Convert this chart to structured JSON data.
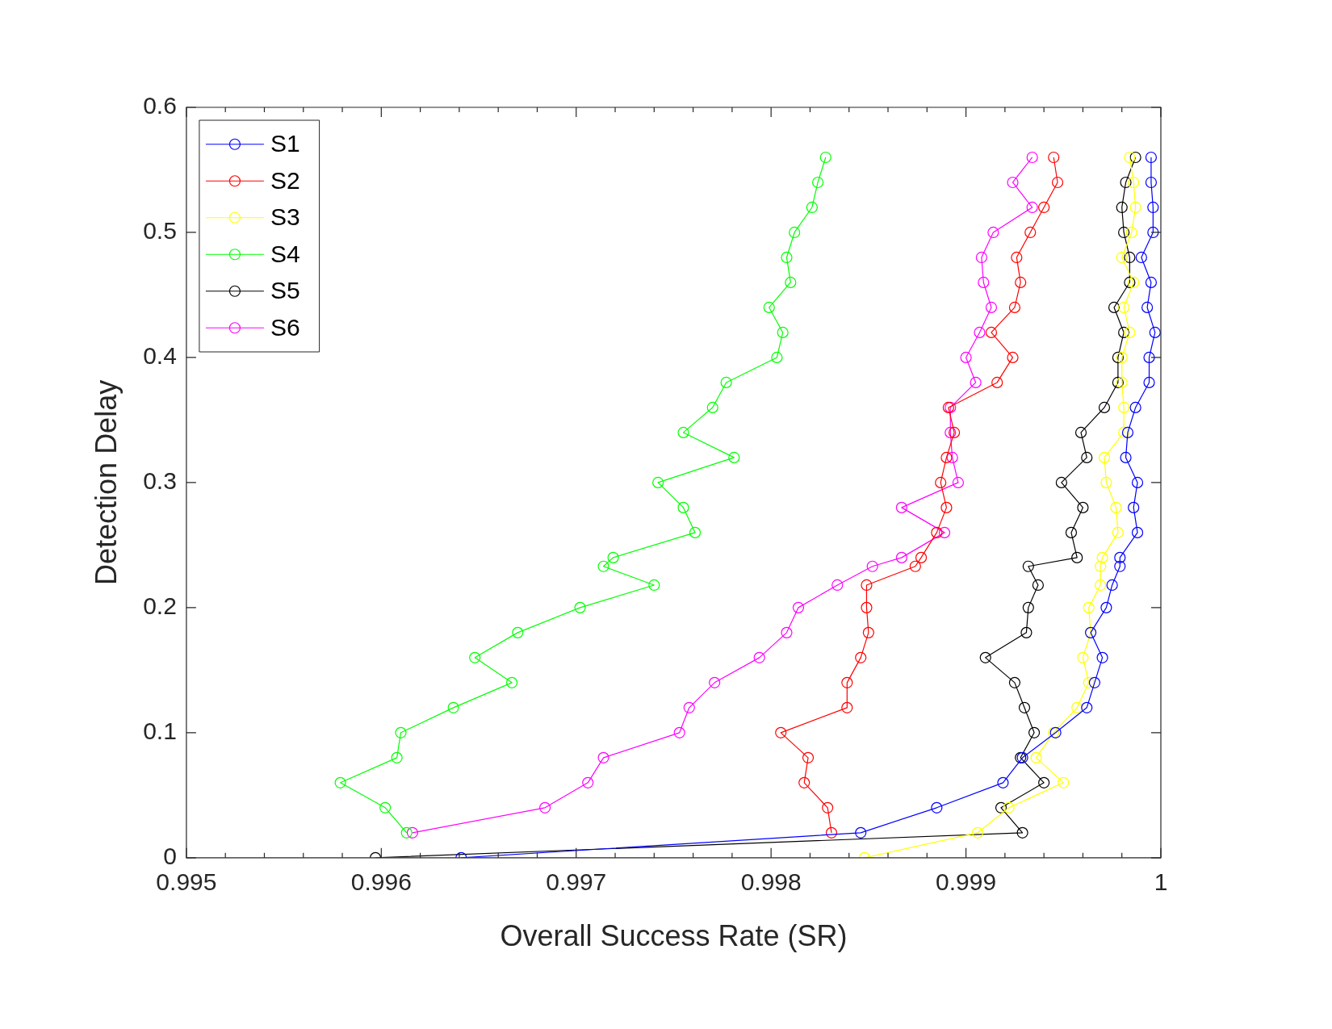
{
  "chart_data": {
    "type": "line",
    "xlabel": "Overall Success Rate (SR)",
    "ylabel": "Detection Delay",
    "xlim": [
      0.995,
      1
    ],
    "ylim": [
      0,
      0.6
    ],
    "xticks": [
      0.995,
      {
        "value": 0.9952,
        "label": null
      },
      {
        "value": 0.9954,
        "label": null
      },
      {
        "value": 0.9956,
        "label": null
      },
      {
        "value": 0.9958,
        "label": null
      },
      0.996,
      {
        "value": 0.9962,
        "label": null
      },
      {
        "value": 0.9964,
        "label": null
      },
      {
        "value": 0.9966,
        "label": null
      },
      {
        "value": 0.9968,
        "label": null
      },
      0.997,
      {
        "value": 0.9972,
        "label": null
      },
      {
        "value": 0.9974,
        "label": null
      },
      {
        "value": 0.9976,
        "label": null
      },
      {
        "value": 0.9978,
        "label": null
      },
      0.998,
      {
        "value": 0.9982,
        "label": null
      },
      {
        "value": 0.9984,
        "label": null
      },
      {
        "value": 0.9986,
        "label": null
      },
      {
        "value": 0.9988,
        "label": null
      },
      0.999,
      {
        "value": 0.9992,
        "label": null
      },
      {
        "value": 0.9994,
        "label": null
      },
      {
        "value": 0.9996,
        "label": null
      },
      {
        "value": 0.9998,
        "label": null
      },
      1
    ],
    "yticks": [
      0,
      0.1,
      0.2,
      0.3,
      0.4,
      0.5,
      0.6
    ],
    "grid": false,
    "legend": "top left",
    "marker": "circle",
    "line_style": "solid",
    "series": [
      {
        "name": "S1",
        "color": "#0000ff",
        "x": [
          0.99641,
          0.99846,
          0.99885,
          0.99919,
          0.99929,
          0.99946,
          0.99962,
          0.99966,
          0.9997,
          0.99964,
          0.99972,
          0.99975,
          0.99979,
          0.99979,
          0.99988,
          0.99986,
          0.99988,
          0.99982,
          0.99983,
          0.99987,
          0.99994,
          0.99994,
          0.99997,
          0.99993,
          0.99995,
          0.9999,
          0.99996,
          0.99996,
          0.99995,
          0.99995
        ],
        "values": [
          0,
          0.02,
          0.04,
          0.06,
          0.08,
          0.1,
          0.12,
          0.14,
          0.16,
          0.18,
          0.2,
          0.218,
          0.233,
          0.24,
          0.26,
          0.28,
          0.3,
          0.32,
          0.34,
          0.36,
          0.38,
          0.4,
          0.42,
          0.44,
          0.46,
          0.48,
          0.5,
          0.52,
          0.54,
          0.56
        ]
      },
      {
        "name": "S2",
        "color": "#ff0000",
        "x": [
          0.99831,
          0.99829,
          0.99817,
          0.99819,
          0.99805,
          0.99839,
          0.99839,
          0.99846,
          0.9985,
          0.99849,
          0.99849,
          0.99874,
          0.99877,
          0.99885,
          0.9989,
          0.99887,
          0.9989,
          0.99894,
          0.99891,
          0.99916,
          0.99924,
          0.99913,
          0.99925,
          0.99928,
          0.99926,
          0.99933,
          0.9994,
          0.99947,
          0.99945
        ],
        "values": [
          0.02,
          0.04,
          0.06,
          0.08,
          0.1,
          0.12,
          0.14,
          0.16,
          0.18,
          0.2,
          0.218,
          0.233,
          0.24,
          0.26,
          0.28,
          0.3,
          0.32,
          0.34,
          0.36,
          0.38,
          0.4,
          0.42,
          0.44,
          0.46,
          0.48,
          0.5,
          0.52,
          0.54,
          0.56
        ]
      },
      {
        "name": "S3",
        "color": "#ffff00",
        "x": [
          0.99848,
          0.99906,
          0.99922,
          0.9995,
          0.99936,
          0.99945,
          0.99957,
          0.99963,
          0.9996,
          0.99964,
          0.99963,
          0.99969,
          0.99969,
          0.9997,
          0.99978,
          0.99977,
          0.99972,
          0.99971,
          0.99981,
          0.99981,
          0.9998,
          0.9998,
          0.99984,
          0.99981,
          0.99986,
          0.9998,
          0.99985,
          0.99987,
          0.99986,
          0.99984
        ],
        "values": [
          0,
          0.02,
          0.04,
          0.06,
          0.08,
          0.1,
          0.12,
          0.14,
          0.16,
          0.18,
          0.2,
          0.218,
          0.233,
          0.24,
          0.26,
          0.28,
          0.3,
          0.32,
          0.34,
          0.36,
          0.38,
          0.4,
          0.42,
          0.44,
          0.46,
          0.48,
          0.5,
          0.52,
          0.54,
          0.56
        ]
      },
      {
        "name": "S4",
        "color": "#00ff00",
        "x": [
          0.99613,
          0.99602,
          0.99579,
          0.99608,
          0.9961,
          0.99637,
          0.99667,
          0.99648,
          0.9967,
          0.99702,
          0.9974,
          0.99714,
          0.99719,
          0.99761,
          0.99755,
          0.99742,
          0.99781,
          0.99755,
          0.9977,
          0.99777,
          0.99803,
          0.99806,
          0.99799,
          0.9981,
          0.99808,
          0.99812,
          0.99821,
          0.99824,
          0.99828
        ],
        "values": [
          0.02,
          0.04,
          0.06,
          0.08,
          0.1,
          0.12,
          0.14,
          0.16,
          0.18,
          0.2,
          0.218,
          0.233,
          0.24,
          0.26,
          0.28,
          0.3,
          0.32,
          0.34,
          0.36,
          0.38,
          0.4,
          0.42,
          0.44,
          0.46,
          0.48,
          0.5,
          0.52,
          0.54,
          0.56
        ]
      },
      {
        "name": "S5",
        "color": "#000000",
        "x": [
          0.99597,
          0.99929,
          0.99918,
          0.9994,
          0.99928,
          0.99935,
          0.9993,
          0.99925,
          0.9991,
          0.99931,
          0.99932,
          0.99937,
          0.99932,
          0.99957,
          0.99954,
          0.9996,
          0.99949,
          0.99962,
          0.99959,
          0.99971,
          0.99978,
          0.99978,
          0.99981,
          0.99976,
          0.99984,
          0.99984,
          0.99981,
          0.9998,
          0.99982,
          0.99987
        ],
        "values": [
          0,
          0.02,
          0.04,
          0.06,
          0.08,
          0.1,
          0.12,
          0.14,
          0.16,
          0.18,
          0.2,
          0.218,
          0.233,
          0.24,
          0.26,
          0.28,
          0.3,
          0.32,
          0.34,
          0.36,
          0.38,
          0.4,
          0.42,
          0.44,
          0.46,
          0.48,
          0.5,
          0.52,
          0.54,
          0.56
        ]
      },
      {
        "name": "S6",
        "color": "#ff00ff",
        "x": [
          0.99616,
          0.99684,
          0.99706,
          0.99714,
          0.99753,
          0.99758,
          0.99771,
          0.99794,
          0.99808,
          0.99814,
          0.99834,
          0.99852,
          0.99867,
          0.99889,
          0.99867,
          0.99896,
          0.99893,
          0.99892,
          0.99892,
          0.99905,
          0.999,
          0.99907,
          0.99913,
          0.99909,
          0.99908,
          0.99914,
          0.99934,
          0.99924,
          0.99934
        ],
        "values": [
          0.02,
          0.04,
          0.06,
          0.08,
          0.1,
          0.12,
          0.14,
          0.16,
          0.18,
          0.2,
          0.218,
          0.233,
          0.24,
          0.26,
          0.28,
          0.3,
          0.32,
          0.34,
          0.36,
          0.38,
          0.4,
          0.42,
          0.44,
          0.46,
          0.48,
          0.5,
          0.52,
          0.54,
          0.56
        ]
      }
    ]
  }
}
